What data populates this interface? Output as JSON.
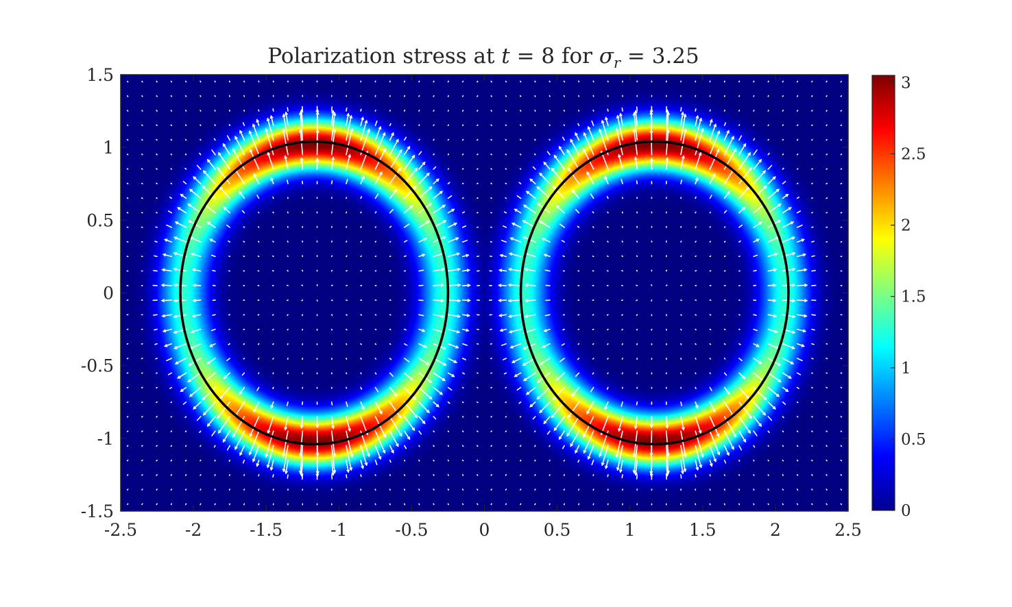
{
  "chart_data": {
    "type": "heatmap",
    "title": {
      "prefix": "Polarization stress at ",
      "var1": "t",
      "mid": " = 8 for ",
      "var2": "σ",
      "var2_sub": "r",
      "suffix": " = 3.25"
    },
    "xlim": [
      -2.5,
      2.5
    ],
    "ylim": [
      -1.5,
      1.5
    ],
    "xticks": [
      -2.5,
      -2,
      -1.5,
      -1,
      -0.5,
      0,
      0.5,
      1,
      1.5,
      2,
      2.5
    ],
    "xtick_labels": [
      "-2.5",
      "-2",
      "-1.5",
      "-1",
      "-0.5",
      "0",
      "0.5",
      "1",
      "1.5",
      "2",
      "2.5"
    ],
    "yticks": [
      1.5,
      1,
      0.5,
      0,
      -0.5,
      -1,
      -1.5
    ],
    "ytick_labels": [
      "1.5",
      "1",
      "0.5",
      "0",
      "-0.5",
      "-1",
      "-1.5"
    ],
    "colorbar": {
      "colormap": "jet",
      "range": [
        0,
        3.05
      ],
      "ticks": [
        3,
        2.5,
        2,
        1.5,
        1,
        0.5,
        0
      ],
      "tick_labels": [
        "3",
        "2.5",
        "2",
        "1.5",
        "1",
        "0.5",
        "0"
      ]
    },
    "drops": [
      {
        "cx": -1.17,
        "cy": 0,
        "rx": 0.92,
        "ry": 1.04
      },
      {
        "cx": 1.17,
        "cy": 0,
        "rx": 0.92,
        "ry": 1.04
      }
    ],
    "field_peak": 3.05,
    "interface_color": "#000000",
    "quiver_color": "#ffffff",
    "background_color": "#00008f",
    "grid": false,
    "legend": "none"
  }
}
